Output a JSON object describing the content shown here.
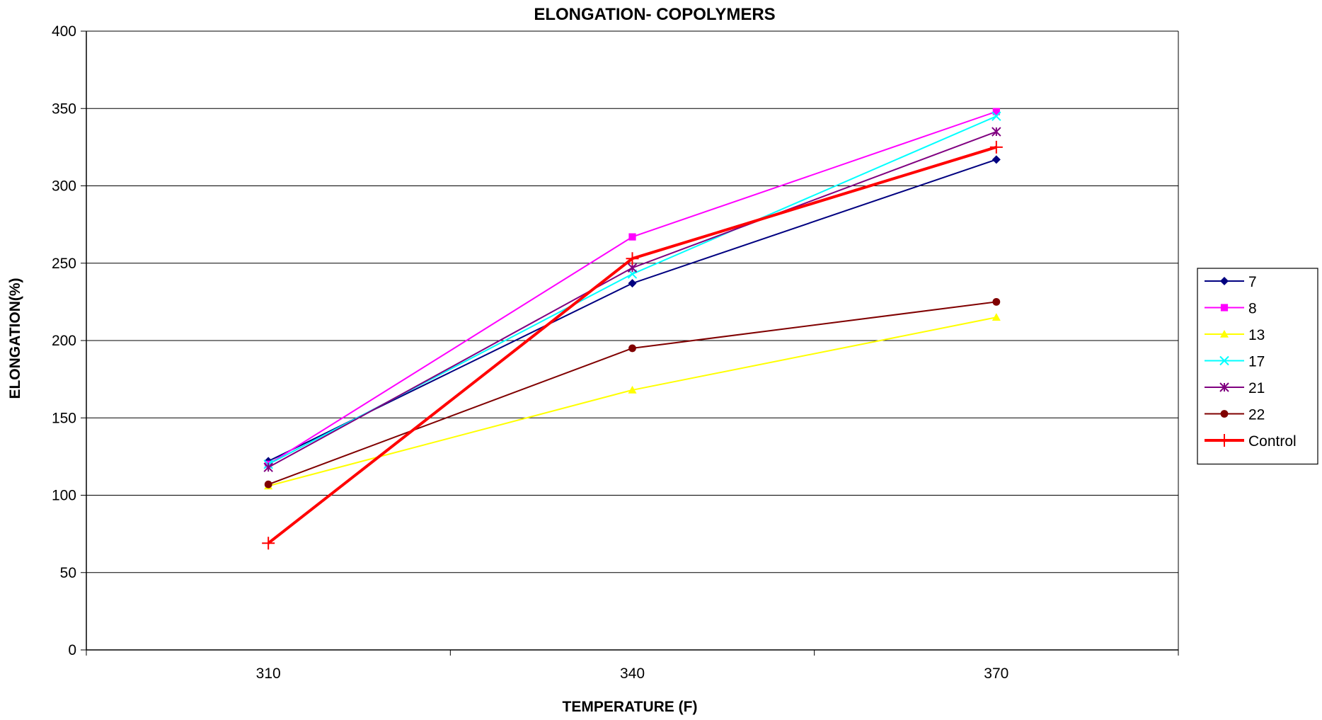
{
  "chart_data": {
    "type": "line",
    "title": "ELONGATION- COPOLYMERS",
    "xlabel": "TEMPERATURE (F)",
    "ylabel": "ELONGATION(%)",
    "categories": [
      "310",
      "340",
      "370"
    ],
    "ylim": [
      0,
      400
    ],
    "yticks": [
      0,
      50,
      100,
      150,
      200,
      250,
      300,
      350,
      400
    ],
    "grid": "horizontal",
    "legend_position": "right",
    "series": [
      {
        "name": "7",
        "values": [
          122,
          237,
          317
        ],
        "color": "#000080",
        "marker": "diamond"
      },
      {
        "name": "8",
        "values": [
          120,
          267,
          348
        ],
        "color": "#ff00ff",
        "marker": "square"
      },
      {
        "name": "13",
        "values": [
          106,
          168,
          215
        ],
        "color": "#ffff00",
        "marker": "triangle"
      },
      {
        "name": "17",
        "values": [
          120,
          243,
          345
        ],
        "color": "#00ffff",
        "marker": "x"
      },
      {
        "name": "21",
        "values": [
          118,
          247,
          335
        ],
        "color": "#800080",
        "marker": "star"
      },
      {
        "name": "22",
        "values": [
          107,
          195,
          225
        ],
        "color": "#800000",
        "marker": "circle"
      },
      {
        "name": "Control",
        "values": [
          69,
          253,
          325
        ],
        "color": "#ff0000",
        "marker": "plus",
        "bold": true
      }
    ]
  }
}
